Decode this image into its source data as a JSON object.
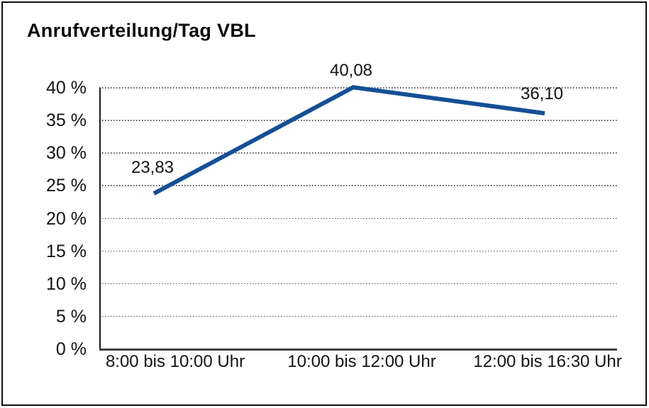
{
  "chart_data": {
    "type": "line",
    "title": "Anrufverteilung/Tag VBL",
    "categories": [
      "8:00 bis 10:00 Uhr",
      "10:00 bis 12:00 Uhr",
      "12:00 bis 16:30 Uhr"
    ],
    "values": [
      23.83,
      40.08,
      36.1
    ],
    "point_labels": [
      "23,83",
      "40,08",
      "36,10"
    ],
    "xlabel": "",
    "ylabel": "",
    "ylim": [
      0,
      40
    ],
    "yticks": {
      "values": [
        40,
        35,
        30,
        25,
        20,
        15,
        10,
        5,
        0
      ],
      "labels": [
        "40 %",
        "35 %",
        "30 %",
        "25 %",
        "20 %",
        "15 %",
        "10 %",
        "5 %",
        "0 %"
      ]
    },
    "grid": "horizontal-dotted",
    "legend": "none",
    "line_color": "#154f96"
  }
}
